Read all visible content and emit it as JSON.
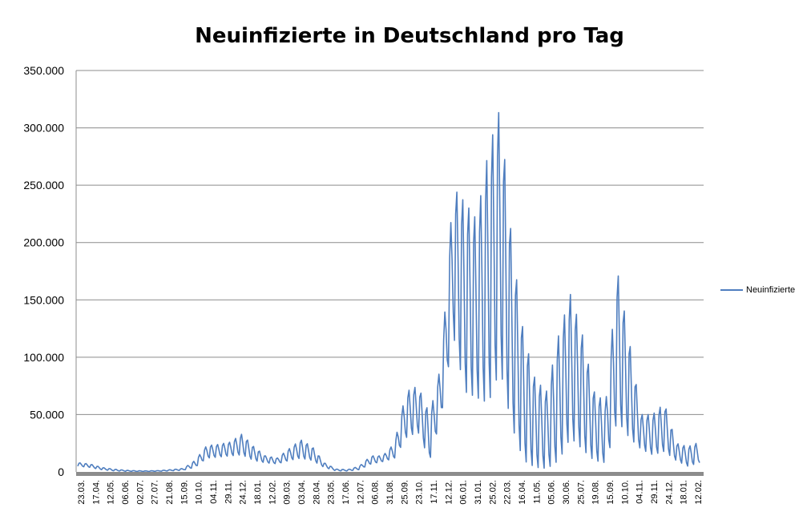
{
  "chart_data": {
    "type": "line",
    "title": "Neuinfizierte in Deutschland pro Tag",
    "xlabel": "",
    "ylabel": "",
    "ylim": [
      0,
      350000
    ],
    "y_ticks": [
      "0",
      "50.000",
      "100.000",
      "150.000",
      "200.000",
      "250.000",
      "300.000",
      "350.000"
    ],
    "x_tick_labels": [
      "23.03.",
      "17.04.",
      "12.05.",
      "06.06.",
      "02.07.",
      "27.07.",
      "21.08.",
      "15.09.",
      "10.10.",
      "04.11.",
      "29.11.",
      "24.12.",
      "18.01.",
      "12.02.",
      "09.03.",
      "03.04.",
      "28.04.",
      "23.05.",
      "17.06.",
      "12.07.",
      "06.08.",
      "31.08.",
      "25.09.",
      "23.10.",
      "17.11.",
      "12.12.",
      "06.01.",
      "31.01.",
      "25.02.",
      "22.03.",
      "16.04.",
      "11.05.",
      "05.06.",
      "30.06.",
      "25.07.",
      "19.08.",
      "15.09.",
      "10.10.",
      "04.11.",
      "29.11.",
      "24.12.",
      "18.01.",
      "12.02."
    ],
    "grid": true,
    "legend_position": "right",
    "color": "#4F7EBF",
    "series": [
      {
        "name": "Neuinfizierte",
        "points": [
          [
            0,
            5000,
            8000
          ],
          [
            1,
            4000,
            7000
          ],
          [
            2,
            2000,
            4000
          ],
          [
            3,
            1000,
            2500
          ],
          [
            4,
            600,
            1500
          ],
          [
            5,
            400,
            1000
          ],
          [
            6,
            400,
            900
          ],
          [
            7,
            600,
            1200
          ],
          [
            8,
            1000,
            2000
          ],
          [
            9,
            1500,
            3000
          ],
          [
            10,
            4000,
            10000
          ],
          [
            11,
            12000,
            23000
          ],
          [
            12,
            13000,
            24000
          ],
          [
            13,
            14000,
            26000
          ],
          [
            14,
            15000,
            33000
          ],
          [
            15,
            10000,
            22000
          ],
          [
            16,
            8000,
            14000
          ],
          [
            17,
            7000,
            12000
          ],
          [
            18,
            10000,
            20000
          ],
          [
            19,
            12000,
            28000
          ],
          [
            20,
            10000,
            22000
          ],
          [
            21,
            4000,
            8000
          ],
          [
            22,
            1000,
            2500
          ],
          [
            23,
            800,
            2000
          ],
          [
            24,
            2000,
            5000
          ],
          [
            25,
            7000,
            14000
          ],
          [
            26,
            9000,
            14000
          ],
          [
            27,
            12000,
            25000
          ],
          [
            28,
            30000,
            70000
          ],
          [
            29,
            35000,
            75000
          ],
          [
            30,
            10000,
            50000
          ],
          [
            31,
            50000,
            95000
          ],
          [
            32,
            120000,
            248000
          ],
          [
            33,
            70000,
            235000
          ],
          [
            34,
            65000,
            220000
          ],
          [
            35,
            60000,
            280000
          ],
          [
            36,
            90000,
            318000
          ],
          [
            37,
            40000,
            200000
          ],
          [
            38,
            10000,
            120000
          ],
          [
            39,
            4000,
            80000
          ],
          [
            40,
            3000,
            70000
          ],
          [
            41,
            10000,
            120000
          ],
          [
            42,
            30000,
            155000
          ],
          [
            43,
            20000,
            120000
          ],
          [
            44,
            10000,
            70000
          ],
          [
            45,
            8000,
            60000
          ],
          [
            46,
            45000,
            175000
          ],
          [
            47,
            30000,
            115000
          ],
          [
            48,
            20000,
            50000
          ],
          [
            49,
            15000,
            50000
          ],
          [
            50,
            18000,
            60000
          ],
          [
            51,
            10000,
            25000
          ],
          [
            52,
            5000,
            22000
          ],
          [
            53,
            8000,
            26000
          ]
        ]
      }
    ]
  }
}
